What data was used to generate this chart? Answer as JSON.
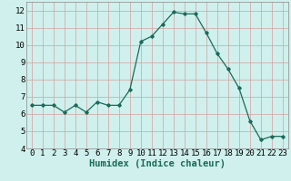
{
  "x": [
    0,
    1,
    2,
    3,
    4,
    5,
    6,
    7,
    8,
    9,
    10,
    11,
    12,
    13,
    14,
    15,
    16,
    17,
    18,
    19,
    20,
    21,
    22,
    23
  ],
  "y": [
    6.5,
    6.5,
    6.5,
    6.1,
    6.5,
    6.1,
    6.7,
    6.5,
    6.5,
    7.4,
    10.2,
    10.5,
    11.2,
    11.9,
    11.8,
    11.8,
    10.7,
    9.5,
    8.6,
    7.5,
    5.6,
    4.5,
    4.7,
    4.7
  ],
  "xlim": [
    -0.5,
    23.5
  ],
  "ylim": [
    4,
    12.5
  ],
  "yticks": [
    4,
    5,
    6,
    7,
    8,
    9,
    10,
    11,
    12
  ],
  "xticks": [
    0,
    1,
    2,
    3,
    4,
    5,
    6,
    7,
    8,
    9,
    10,
    11,
    12,
    13,
    14,
    15,
    16,
    17,
    18,
    19,
    20,
    21,
    22,
    23
  ],
  "xlabel": "Humidex (Indice chaleur)",
  "line_color": "#1a6b5a",
  "marker": "D",
  "marker_size": 1.8,
  "bg_color": "#cff0ec",
  "grid_color": "#d4a0a0",
  "axis_fontsize": 6.5,
  "label_fontsize": 7.5
}
